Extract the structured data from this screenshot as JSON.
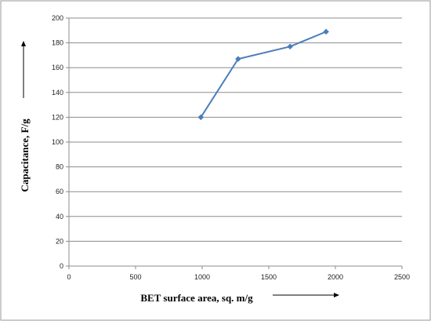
{
  "chart_data": {
    "type": "line",
    "title": "",
    "xlabel": "BET surface area, sq. m/g",
    "ylabel": "Capacitance, F/g",
    "xlim": [
      0,
      2500
    ],
    "ylim": [
      0,
      200
    ],
    "x_ticks": [
      0,
      500,
      1000,
      1500,
      2000,
      2500
    ],
    "y_ticks": [
      0,
      20,
      40,
      60,
      80,
      100,
      120,
      140,
      160,
      180,
      200
    ],
    "grid": "horizontal",
    "legend": "none",
    "series": [
      {
        "color": "#4a7ebb",
        "marker": "diamond",
        "points": [
          {
            "x": 990,
            "y": 120
          },
          {
            "x": 1270,
            "y": 167
          },
          {
            "x": 1660,
            "y": 177
          },
          {
            "x": 1930,
            "y": 189
          }
        ]
      }
    ]
  }
}
